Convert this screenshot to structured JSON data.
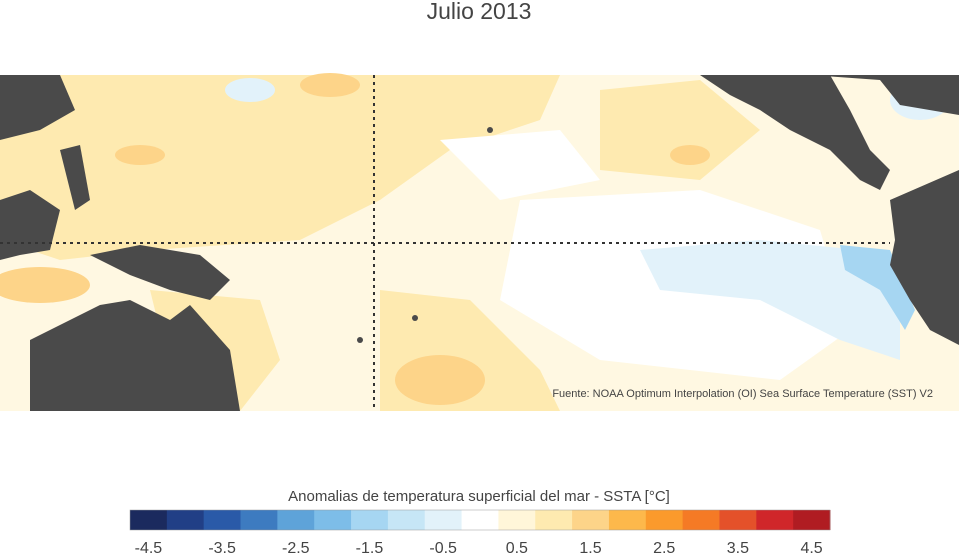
{
  "title": "Julio 2013",
  "source": "Fuente: NOAA Optimum Interpolation (OI) Sea Surface Temperature (SST) V2",
  "colorbar": {
    "label": "Anomalias de temperatura superficial del mar - SSTA  [°C]",
    "lim": [
      -4.75,
      4.75
    ],
    "ticks": [
      -4.5,
      -3.5,
      -2.5,
      -1.5,
      -0.5,
      0.5,
      1.5,
      2.5,
      3.5,
      4.5
    ],
    "colors": [
      "#1b2a5e",
      "#213f86",
      "#2a5aa8",
      "#3d7bc0",
      "#5ea3d9",
      "#7dbde8",
      "#a6d6f2",
      "#c6e6f6",
      "#e2f2fa",
      "#ffffff",
      "#fff6d9",
      "#feeab0",
      "#fdd489",
      "#fdb84b",
      "#fb9a2c",
      "#f57a25",
      "#e4512a",
      "#d0262a",
      "#b01c22"
    ]
  }
}
